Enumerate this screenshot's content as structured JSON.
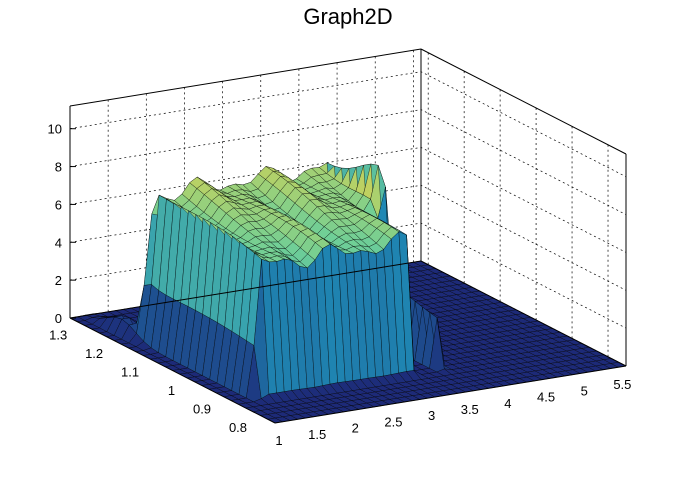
{
  "chart_data": {
    "type": "surface",
    "title": "Graph2D",
    "xlabel": "",
    "ylabel": "",
    "zlabel": "",
    "xlim": [
      1,
      5.6
    ],
    "ylim": [
      0.75,
      1.32
    ],
    "zlim": [
      0,
      11.2
    ],
    "grid": true,
    "colormap": "viridis-like (navy → teal → green → yellow)",
    "x_ticks": [
      "1",
      "1.5",
      "2",
      "2.5",
      "3",
      "3.5",
      "4",
      "4.5",
      "5",
      "5.5"
    ],
    "y_ticks": [
      "0.8",
      "0.9",
      "1",
      "1.1",
      "1.2",
      "1.3"
    ],
    "z_ticks": [
      "0",
      "2",
      "4",
      "6",
      "8",
      "10"
    ],
    "x_tick_values": [
      1,
      1.5,
      2,
      2.5,
      3,
      3.5,
      4,
      4.5,
      5,
      5.5
    ],
    "y_tick_values": [
      0.8,
      0.9,
      1.0,
      1.1,
      1.2,
      1.3
    ],
    "z_tick_values": [
      0,
      2,
      4,
      6,
      8,
      10
    ],
    "plateau": {
      "x_range": [
        1.25,
        3.3
      ],
      "y_range": [
        0.85,
        1.2
      ],
      "front_z": 6.8,
      "back_z": 8.0,
      "peak": {
        "x": 3.6,
        "y": 1.0,
        "z": 9.0
      }
    },
    "gap": {
      "x_range": [
        3.3,
        3.65
      ],
      "y_range": [
        0.85,
        1.0
      ]
    },
    "grid_nx": 46,
    "grid_ny": 28
  },
  "colors": {
    "low": "#1d2a78",
    "mid": "#1f8fb8",
    "midhigh": "#6fcf97",
    "high": "#f5d33c"
  }
}
